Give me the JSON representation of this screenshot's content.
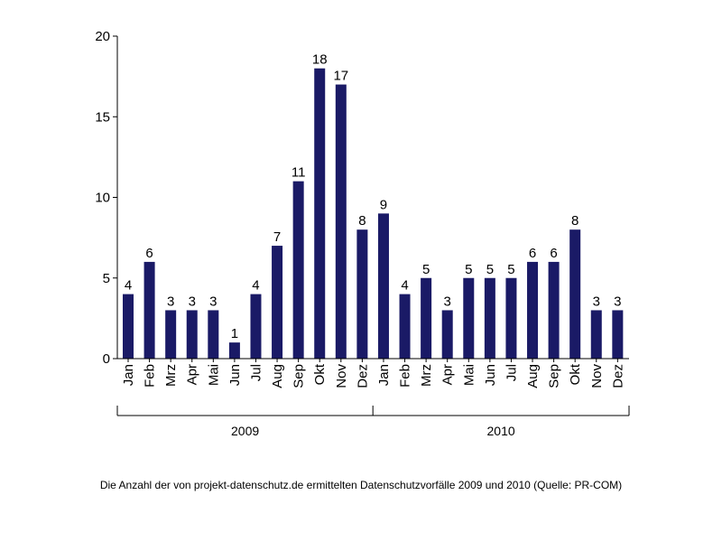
{
  "chart_data": {
    "type": "bar",
    "categories": [
      "Jan",
      "Feb",
      "Mrz",
      "Apr",
      "Mai",
      "Jun",
      "Jul",
      "Aug",
      "Sep",
      "Okt",
      "Nov",
      "Dez",
      "Jan",
      "Feb",
      "Mrz",
      "Apr",
      "Mai",
      "Jun",
      "Jul",
      "Aug",
      "Sep",
      "Okt",
      "Nov",
      "Dez"
    ],
    "values": [
      4,
      6,
      3,
      3,
      3,
      1,
      4,
      7,
      11,
      18,
      17,
      8,
      9,
      4,
      5,
      3,
      5,
      5,
      5,
      6,
      6,
      8,
      3,
      3
    ],
    "groups": [
      {
        "label": "2009",
        "count": 12
      },
      {
        "label": "2010",
        "count": 12
      }
    ],
    "ylim": [
      0,
      20
    ],
    "yticks": [
      0,
      5,
      10,
      15,
      20
    ],
    "bar_color": "#1a1a66",
    "grid": false,
    "data_labels": true
  },
  "caption": "Die Anzahl der von projekt-datenschutz.de ermittelten Datenschutzvorfälle 2009 und 2010 (Quelle: PR-COM)"
}
